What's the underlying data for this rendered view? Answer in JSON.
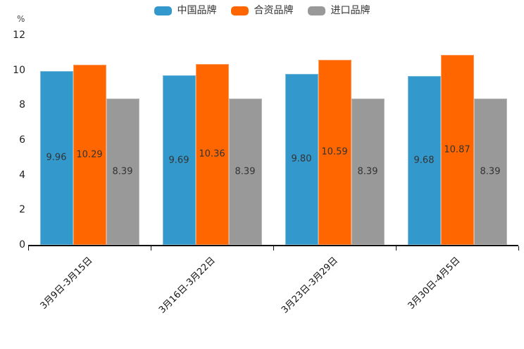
{
  "chart_data": {
    "type": "bar",
    "title": "",
    "xlabel": "",
    "ylabel": "%",
    "categories": [
      "3月9日-3月15日",
      "3月16日-3月22日",
      "3月23日-3月29日",
      "3月30日-4月5日"
    ],
    "series": [
      {
        "name": "中国品牌",
        "color": "#3398cc",
        "values": [
          9.96,
          9.69,
          9.8,
          9.68
        ]
      },
      {
        "name": "合资品牌",
        "color": "#ff6600",
        "values": [
          10.29,
          10.36,
          10.59,
          10.87
        ]
      },
      {
        "name": "进口品牌",
        "color": "#999999",
        "values": [
          8.39,
          8.39,
          8.39,
          8.39
        ]
      }
    ],
    "ylim": [
      0,
      12
    ],
    "yticks": [
      0,
      2,
      4,
      6,
      8,
      10,
      12
    ],
    "grid": false,
    "legend_position": "top",
    "value_label_decimals": 2
  }
}
